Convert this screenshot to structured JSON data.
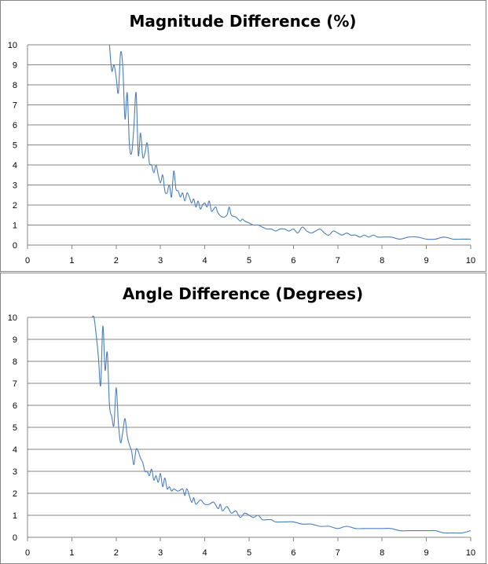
{
  "chart_data": [
    {
      "type": "line",
      "title": "Magnitude Difference (%)",
      "xlabel": "",
      "ylabel": "",
      "xlim": [
        0,
        10
      ],
      "ylim": [
        0,
        10
      ],
      "x_ticks": [
        "0",
        "1",
        "2",
        "3",
        "4",
        "5",
        "6",
        "7",
        "8",
        "9",
        "10"
      ],
      "y_ticks": [
        "0",
        "1",
        "2",
        "3",
        "4",
        "5",
        "6",
        "7",
        "8",
        "9",
        "10"
      ],
      "grid": "horizontal",
      "legend": "none",
      "line_color": "#4a7ebb",
      "series": [
        {
          "x": [
            1.85,
            1.9,
            1.95,
            2.0,
            2.05,
            2.1,
            2.15,
            2.2,
            2.25,
            2.3,
            2.35,
            2.4,
            2.45,
            2.5,
            2.55,
            2.6,
            2.65,
            2.7,
            2.75,
            2.8,
            2.85,
            2.9,
            2.95,
            3.0,
            3.05,
            3.1,
            3.15,
            3.2,
            3.25,
            3.3,
            3.35,
            3.4,
            3.45,
            3.5,
            3.55,
            3.6,
            3.65,
            3.7,
            3.75,
            3.8,
            3.85,
            3.9,
            3.95,
            4.0,
            4.05,
            4.1,
            4.15,
            4.2,
            4.25,
            4.3,
            4.4,
            4.5,
            4.55,
            4.6,
            4.7,
            4.8,
            4.85,
            4.9,
            5.0,
            5.1,
            5.2,
            5.3,
            5.4,
            5.5,
            5.6,
            5.7,
            5.8,
            5.9,
            6.0,
            6.1,
            6.2,
            6.3,
            6.4,
            6.5,
            6.6,
            6.7,
            6.8,
            6.9,
            7.0,
            7.1,
            7.2,
            7.3,
            7.4,
            7.5,
            7.6,
            7.7,
            7.8,
            7.9,
            8.0,
            8.2,
            8.4,
            8.6,
            8.8,
            9.0,
            9.2,
            9.4,
            9.6,
            9.8,
            10.0
          ],
          "values": [
            10.0,
            8.7,
            9.0,
            8.4,
            7.6,
            9.6,
            8.9,
            6.3,
            7.6,
            5.0,
            4.6,
            5.9,
            7.6,
            4.5,
            5.6,
            4.4,
            4.6,
            5.1,
            4.1,
            4.0,
            3.6,
            4.0,
            3.5,
            3.1,
            3.5,
            2.7,
            2.6,
            3.0,
            2.4,
            3.7,
            2.8,
            2.7,
            2.4,
            2.6,
            2.2,
            2.6,
            2.4,
            2.1,
            2.3,
            1.9,
            2.2,
            1.8,
            2.0,
            2.1,
            1.9,
            2.2,
            1.7,
            1.8,
            1.9,
            1.6,
            1.4,
            1.5,
            1.9,
            1.5,
            1.4,
            1.2,
            1.3,
            1.2,
            1.1,
            1.0,
            1.0,
            0.9,
            0.8,
            0.8,
            0.7,
            0.8,
            0.8,
            0.7,
            0.8,
            0.6,
            0.9,
            0.7,
            0.6,
            0.7,
            0.8,
            0.6,
            0.5,
            0.7,
            0.6,
            0.5,
            0.6,
            0.5,
            0.5,
            0.4,
            0.5,
            0.4,
            0.5,
            0.4,
            0.4,
            0.4,
            0.3,
            0.4,
            0.4,
            0.3,
            0.3,
            0.4,
            0.3,
            0.3,
            0.3
          ]
        }
      ]
    },
    {
      "type": "line",
      "title": "Angle Difference (Degrees)",
      "xlabel": "",
      "ylabel": "",
      "xlim": [
        0,
        10
      ],
      "ylim": [
        0,
        10
      ],
      "x_ticks": [
        "0",
        "1",
        "2",
        "3",
        "4",
        "5",
        "6",
        "7",
        "8",
        "9",
        "10"
      ],
      "y_ticks": [
        "0",
        "1",
        "2",
        "3",
        "4",
        "5",
        "6",
        "7",
        "8",
        "9",
        "10"
      ],
      "grid": "horizontal",
      "legend": "none",
      "line_color": "#4a7ebb",
      "series": [
        {
          "x": [
            1.45,
            1.5,
            1.55,
            1.6,
            1.65,
            1.7,
            1.75,
            1.8,
            1.85,
            1.9,
            1.95,
            2.0,
            2.05,
            2.1,
            2.15,
            2.2,
            2.25,
            2.3,
            2.35,
            2.4,
            2.45,
            2.5,
            2.55,
            2.6,
            2.65,
            2.7,
            2.75,
            2.8,
            2.85,
            2.9,
            2.95,
            3.0,
            3.05,
            3.1,
            3.15,
            3.2,
            3.25,
            3.3,
            3.4,
            3.5,
            3.55,
            3.6,
            3.7,
            3.75,
            3.8,
            3.9,
            4.0,
            4.1,
            4.2,
            4.3,
            4.35,
            4.4,
            4.5,
            4.6,
            4.7,
            4.8,
            4.9,
            5.0,
            5.1,
            5.2,
            5.3,
            5.4,
            5.5,
            5.6,
            5.8,
            6.0,
            6.2,
            6.4,
            6.6,
            6.8,
            7.0,
            7.2,
            7.4,
            7.6,
            7.8,
            8.0,
            8.2,
            8.4,
            8.6,
            8.8,
            9.0,
            9.2,
            9.4,
            9.6,
            9.8,
            10.0
          ],
          "values": [
            10.0,
            10.0,
            9.2,
            8.2,
            6.9,
            9.6,
            7.6,
            8.4,
            6.0,
            5.5,
            5.1,
            6.8,
            5.2,
            4.3,
            4.8,
            5.4,
            4.6,
            4.2,
            3.9,
            3.3,
            4.0,
            3.9,
            3.6,
            3.4,
            3.0,
            3.0,
            2.8,
            3.1,
            2.6,
            2.8,
            2.5,
            2.9,
            2.3,
            2.7,
            2.2,
            2.3,
            2.1,
            2.2,
            2.1,
            2.2,
            1.9,
            2.2,
            1.6,
            1.8,
            1.5,
            1.7,
            1.5,
            1.5,
            1.6,
            1.3,
            1.5,
            1.2,
            1.4,
            1.1,
            1.2,
            0.9,
            1.1,
            1.0,
            0.9,
            1.0,
            0.8,
            0.8,
            0.8,
            0.7,
            0.7,
            0.7,
            0.6,
            0.6,
            0.5,
            0.5,
            0.4,
            0.5,
            0.4,
            0.4,
            0.4,
            0.4,
            0.4,
            0.3,
            0.3,
            0.3,
            0.3,
            0.3,
            0.2,
            0.2,
            0.2,
            0.3
          ]
        }
      ]
    }
  ]
}
